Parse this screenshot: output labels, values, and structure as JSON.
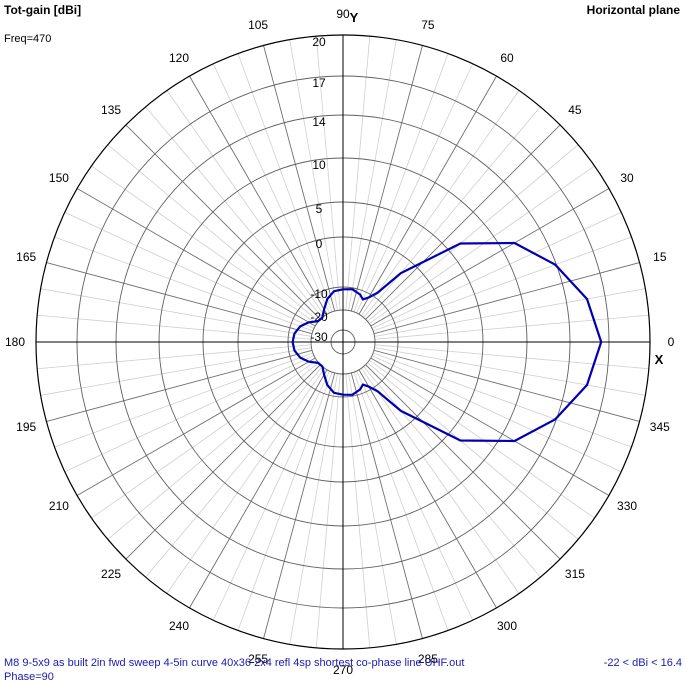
{
  "header": {
    "title": "Tot-gain [dBi]",
    "plane": "Horizontal plane",
    "freq": "Freq=470"
  },
  "footer": {
    "left": "M8 9-5x9 as built 2in fwd sweep 4-5in curve 40x36 2x4 refl 4sp shortest co-phase line UHF.out",
    "right": "-22 < dBi < 16.4",
    "cut": "Phase=90"
  },
  "chart_data": {
    "type": "polar-line",
    "x_axis_label": "X",
    "y_axis_label": "Y",
    "angle_ticks": [
      0,
      15,
      30,
      45,
      60,
      75,
      90,
      105,
      120,
      135,
      150,
      165,
      180,
      195,
      210,
      225,
      240,
      255,
      270,
      285,
      300,
      315,
      330,
      345
    ],
    "radial_ticks": [
      20,
      17,
      14,
      10,
      5,
      0,
      -10,
      -20,
      -30
    ],
    "gain_range": [
      -22,
      16.4
    ],
    "line_color": "#0000b0",
    "series": [
      {
        "points": [
          [
            0,
            16.4
          ],
          [
            10,
            15.6
          ],
          [
            20,
            13.9
          ],
          [
            30,
            11.3
          ],
          [
            40,
            6.5
          ],
          [
            50,
            -3.0
          ],
          [
            55,
            -9.0
          ],
          [
            60,
            -11.5
          ],
          [
            65,
            -13.5
          ],
          [
            70,
            -12.0
          ],
          [
            80,
            -10.6
          ],
          [
            90,
            -11.0
          ],
          [
            100,
            -11.5
          ],
          [
            110,
            -14.0
          ],
          [
            120,
            -17.5
          ],
          [
            130,
            -20.0
          ],
          [
            140,
            -19.8
          ],
          [
            150,
            -16.8
          ],
          [
            160,
            -14.1
          ],
          [
            170,
            -12.5
          ],
          [
            180,
            -12.0
          ],
          [
            190,
            -12.5
          ],
          [
            200,
            -14.1
          ],
          [
            210,
            -16.8
          ],
          [
            220,
            -19.8
          ],
          [
            230,
            -20.0
          ],
          [
            240,
            -17.5
          ],
          [
            250,
            -14.0
          ],
          [
            260,
            -11.5
          ],
          [
            270,
            -11.0
          ],
          [
            280,
            -10.6
          ],
          [
            290,
            -12.0
          ],
          [
            295,
            -13.5
          ],
          [
            300,
            -11.5
          ],
          [
            305,
            -9.0
          ],
          [
            310,
            -3.0
          ],
          [
            320,
            6.5
          ],
          [
            330,
            11.3
          ],
          [
            340,
            13.9
          ],
          [
            350,
            15.6
          ],
          [
            360,
            16.4
          ]
        ]
      }
    ]
  }
}
